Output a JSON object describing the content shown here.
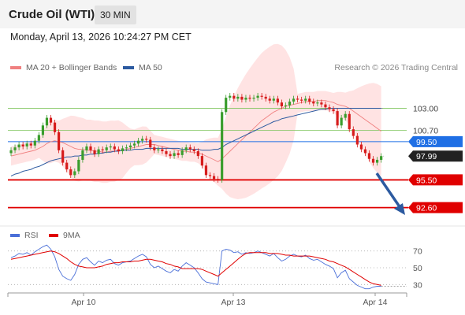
{
  "header": {
    "title": "Crude Oil (WTI)",
    "timeframe": "30 MIN"
  },
  "datetime": "Monday, April 13, 2026 10:24:27 PM CET",
  "copyright": "Research © 2026 Trading Central",
  "colors": {
    "bollinger": "#f08080",
    "ma50": "#2c5aa0",
    "rsi": "#4a6fd8",
    "rsi_ma": "#e00000",
    "resistance": "#7cc35a",
    "support": "#e00000",
    "pivot": "#1f6fe5",
    "last": "#222222"
  },
  "chart_data": [
    {
      "type": "candlestick",
      "legend": [
        "MA 20 + Bollinger Bands",
        "MA 50"
      ],
      "x_ticks": [
        "Apr 10",
        "Apr 13",
        "Apr 14"
      ],
      "ylim": [
        91.0,
        106.5
      ],
      "levels": [
        {
          "name": "resistance-1",
          "value": 103.0,
          "label": "103.00",
          "kind": "resistance"
        },
        {
          "name": "resistance-2",
          "value": 100.7,
          "label": "100.70",
          "kind": "resistance"
        },
        {
          "name": "pivot",
          "value": 99.5,
          "label": "99.50",
          "kind": "pivot"
        },
        {
          "name": "last-price",
          "value": 97.99,
          "label": "97.99",
          "kind": "last"
        },
        {
          "name": "support-1",
          "value": 95.5,
          "label": "95.50",
          "kind": "support"
        },
        {
          "name": "support-2",
          "value": 92.6,
          "label": "92.60",
          "kind": "support"
        }
      ],
      "close": [
        98.6,
        98.9,
        99.2,
        99.0,
        99.3,
        99.1,
        99.6,
        100.2,
        101.2,
        102.0,
        101.5,
        100.5,
        98.6,
        97.3,
        96.6,
        96.0,
        96.4,
        97.6,
        98.6,
        99.0,
        98.6,
        98.2,
        98.7,
        98.6,
        98.9,
        99.0,
        98.7,
        98.5,
        98.8,
        98.9,
        99.1,
        99.3,
        99.6,
        99.8,
        99.7,
        98.9,
        98.6,
        98.7,
        98.5,
        98.2,
        98.0,
        98.3,
        98.1,
        98.6,
        98.9,
        98.7,
        98.5,
        98.0,
        97.0,
        96.0,
        95.9,
        95.6,
        95.5,
        102.6,
        104.1,
        104.3,
        104.0,
        104.2,
        103.9,
        104.1,
        104.0,
        104.1,
        104.3,
        104.2,
        104.0,
        103.8,
        104.0,
        103.6,
        103.2,
        103.3,
        103.7,
        104.0,
        103.9,
        103.8,
        104.0,
        103.7,
        103.5,
        103.6,
        103.4,
        103.1,
        102.9,
        102.7,
        101.2,
        102.0,
        102.4,
        100.8,
        100.1,
        99.2,
        98.7,
        98.3,
        97.7,
        97.3,
        97.6,
        97.99
      ],
      "ma20": [
        98.0,
        98.1,
        98.2,
        98.3,
        98.4,
        98.5,
        98.6,
        98.8,
        99.0,
        99.3,
        99.5,
        99.6,
        99.5,
        99.4,
        99.2,
        99.0,
        98.8,
        98.7,
        98.7,
        98.6,
        98.6,
        98.5,
        98.5,
        98.4,
        98.4,
        98.5,
        98.5,
        98.6,
        98.6,
        98.7,
        98.8,
        98.9,
        99.0,
        99.1,
        99.2,
        99.2,
        99.2,
        99.1,
        99.0,
        98.9,
        98.8,
        98.7,
        98.6,
        98.5,
        98.5,
        98.4,
        98.4,
        98.3,
        98.2,
        98.0,
        97.8,
        97.6,
        97.4,
        97.7,
        98.1,
        98.5,
        98.9,
        99.3,
        99.7,
        100.1,
        100.5,
        100.9,
        101.3,
        101.7,
        102.0,
        102.3,
        102.6,
        102.8,
        103.0,
        103.2,
        103.3,
        103.4,
        103.5,
        103.6,
        103.7,
        103.7,
        103.7,
        103.8,
        103.8,
        103.8,
        103.7,
        103.6,
        103.4,
        103.3,
        103.2,
        103.0,
        102.7,
        102.4,
        102.1,
        101.8,
        101.5,
        101.2,
        100.9,
        100.6
      ],
      "ma50": [
        95.9,
        96.1,
        96.2,
        96.4,
        96.5,
        96.6,
        96.8,
        96.9,
        97.1,
        97.3,
        97.5,
        97.6,
        97.7,
        97.8,
        97.9,
        97.9,
        98.0,
        98.0,
        98.1,
        98.1,
        98.2,
        98.2,
        98.3,
        98.3,
        98.4,
        98.4,
        98.5,
        98.5,
        98.6,
        98.6,
        98.6,
        98.7,
        98.7,
        98.7,
        98.8,
        98.8,
        98.8,
        98.8,
        98.8,
        98.8,
        98.8,
        98.8,
        98.8,
        98.7,
        98.7,
        98.7,
        98.7,
        98.7,
        98.6,
        98.6,
        98.6,
        98.7,
        98.7,
        98.9,
        99.2,
        99.4,
        99.6,
        99.8,
        100.0,
        100.2,
        100.4,
        100.6,
        100.8,
        101.0,
        101.2,
        101.4,
        101.6,
        101.7,
        101.9,
        102.0,
        102.1,
        102.2,
        102.3,
        102.4,
        102.5,
        102.6,
        102.7,
        102.8,
        102.9,
        102.9,
        103.0,
        103.0,
        103.0,
        103.0,
        103.0,
        103.0,
        103.0,
        103.0,
        103.0,
        103.0,
        103.0,
        103.0,
        103.0,
        103.0
      ]
    },
    {
      "type": "line",
      "legend": [
        "RSI",
        "9MA"
      ],
      "y_ticks": [
        70,
        50,
        30
      ],
      "ylim": [
        20,
        80
      ],
      "series": [
        {
          "name": "RSI",
          "values": [
            62,
            64,
            67,
            66,
            68,
            65,
            69,
            72,
            75,
            77,
            72,
            63,
            48,
            40,
            37,
            35,
            42,
            54,
            60,
            62,
            57,
            53,
            58,
            56,
            59,
            60,
            55,
            53,
            56,
            57,
            58,
            61,
            64,
            66,
            63,
            54,
            50,
            52,
            49,
            46,
            44,
            48,
            46,
            52,
            56,
            53,
            50,
            44,
            37,
            33,
            32,
            31,
            30,
            70,
            72,
            71,
            68,
            69,
            66,
            68,
            67,
            68,
            70,
            68,
            66,
            64,
            67,
            62,
            58,
            60,
            64,
            66,
            64,
            63,
            65,
            61,
            59,
            60,
            57,
            54,
            52,
            49,
            38,
            44,
            47,
            37,
            33,
            29,
            27,
            25,
            25,
            27,
            28,
            28
          ]
        },
        {
          "name": "9MA",
          "values": [
            60,
            61,
            62,
            63,
            64,
            65,
            66,
            67,
            68,
            69,
            70,
            69,
            67,
            64,
            61,
            57,
            54,
            52,
            51,
            50,
            50,
            50,
            51,
            52,
            54,
            55,
            56,
            56,
            57,
            57,
            57,
            58,
            58,
            59,
            60,
            60,
            59,
            58,
            57,
            55,
            54,
            52,
            51,
            49,
            49,
            49,
            49,
            49,
            48,
            46,
            44,
            42,
            40,
            44,
            48,
            52,
            56,
            60,
            64,
            67,
            68,
            68,
            68,
            68,
            68,
            67,
            67,
            67,
            66,
            65,
            65,
            64,
            64,
            64,
            64,
            64,
            63,
            62,
            61,
            60,
            58,
            57,
            55,
            53,
            51,
            48,
            45,
            42,
            39,
            36,
            33,
            31,
            30,
            29
          ]
        }
      ]
    }
  ]
}
